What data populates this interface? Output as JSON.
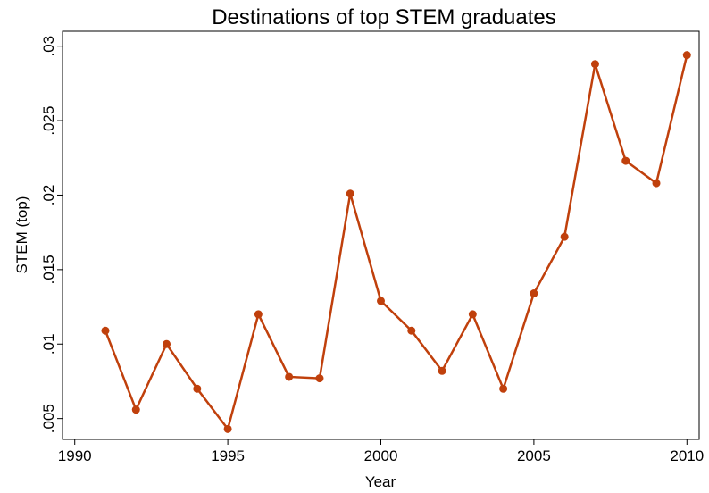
{
  "chart_data": {
    "type": "line",
    "title": "Destinations of top STEM graduates",
    "x_label": "Year",
    "y_label": "STEM (top)",
    "x": [
      1991,
      1992,
      1993,
      1994,
      1995,
      1996,
      1997,
      1998,
      1999,
      2000,
      2001,
      2002,
      2003,
      2004,
      2005,
      2006,
      2007,
      2008,
      2009,
      2010
    ],
    "series": [
      {
        "name": "STEM (top)",
        "color": "#c0400c",
        "values": [
          0.0109,
          0.0056,
          0.01,
          0.007,
          0.0043,
          0.012,
          0.0078,
          0.0077,
          0.0201,
          0.0129,
          0.0109,
          0.0082,
          0.012,
          0.007,
          0.0134,
          0.0172,
          0.0288,
          0.0223,
          0.0208,
          0.0294
        ]
      }
    ],
    "xlim": [
      1989.6,
      2010.4
    ],
    "xticks": [
      1990,
      1995,
      2000,
      2005,
      2010
    ],
    "ylim": [
      0.0036,
      0.031
    ],
    "yticks": [
      {
        "value": 0.005,
        "label": ".005"
      },
      {
        "value": 0.01,
        "label": ".01"
      },
      {
        "value": 0.015,
        "label": ".015"
      },
      {
        "value": 0.02,
        "label": ".02"
      },
      {
        "value": 0.025,
        "label": ".025"
      },
      {
        "value": 0.03,
        "label": ".03"
      }
    ]
  }
}
